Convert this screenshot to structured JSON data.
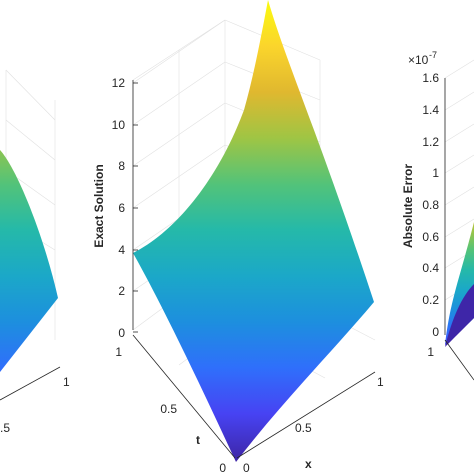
{
  "figure": {
    "panels": [
      "left-partial",
      "exact-solution",
      "absolute-error-partial"
    ]
  },
  "colormap": {
    "name": "parula",
    "stops": [
      "#3e26a8",
      "#4743f3",
      "#2f6ffb",
      "#1d8fde",
      "#1ba8c8",
      "#25b9a9",
      "#53c379",
      "#9fc544",
      "#e0b82f",
      "#fbd52c",
      "#f9fb0e"
    ]
  },
  "left_panel": {
    "tick_labels": [
      ".5"
    ],
    "x_tick": "1"
  },
  "center_panel": {
    "zlabel": "Exact Solution",
    "xlabel": "x",
    "tlabel": "t",
    "z_ticks": [
      "0",
      "2",
      "4",
      "6",
      "8",
      "10",
      "12"
    ],
    "x_ticks": [
      "0",
      "0.5",
      "1"
    ],
    "t_ticks": [
      "0",
      "0.5",
      "1"
    ]
  },
  "right_panel": {
    "zlabel": "Absolute Error",
    "exponent": "×10",
    "exponent_power": "-7",
    "z_ticks": [
      "0",
      "0.2",
      "0.4",
      "0.6",
      "0.8",
      "1",
      "1.2",
      "1.4",
      "1.6"
    ],
    "t_tick_visible": "1"
  },
  "chart_data": [
    {
      "type": "surface",
      "panel": "exact-solution",
      "xlabel": "x",
      "ylabel": "t",
      "zlabel": "Exact Solution",
      "xlim": [
        0,
        1
      ],
      "ylim": [
        0,
        1
      ],
      "zlim": [
        0,
        12
      ],
      "grid": true,
      "corners": [
        {
          "x": 0,
          "t": 0,
          "z": 0.3
        },
        {
          "x": 0,
          "t": 1,
          "z": 3.9
        },
        {
          "x": 1,
          "t": 0,
          "z": 1.8
        },
        {
          "x": 1,
          "t": 1,
          "z": 13.5
        }
      ]
    },
    {
      "type": "surface",
      "panel": "absolute-error",
      "zlabel": "Absolute Error",
      "zlim": [
        0,
        1.6
      ],
      "z_scale": "1e-7",
      "grid": true
    }
  ]
}
